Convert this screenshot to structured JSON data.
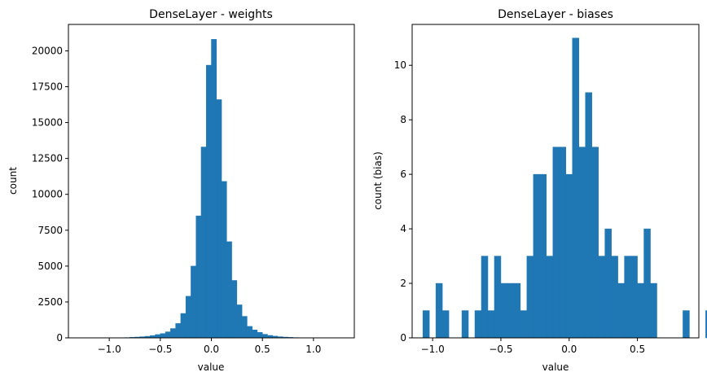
{
  "chart_data": [
    {
      "type": "histogram",
      "title": "DenseLayer - weights",
      "xlabel": "value",
      "ylabel": "count",
      "xlim": [
        -1.4,
        1.4
      ],
      "ylim": [
        0,
        21840
      ],
      "xticks": [
        -1.0,
        -0.5,
        0.0,
        0.5,
        1.0
      ],
      "xtick_labels": [
        "−1.0",
        "−0.5",
        "0.0",
        "0.5",
        "1.0"
      ],
      "yticks": [
        0,
        2500,
        5000,
        7500,
        10000,
        12500,
        15000,
        17500,
        20000
      ],
      "ytick_labels": [
        "0",
        "2500",
        "5000",
        "7500",
        "10000",
        "12500",
        "15000",
        "17500",
        "20000"
      ],
      "bin_width": 0.05,
      "bins": [
        [
          -1.0,
          5
        ],
        [
          -0.95,
          8
        ],
        [
          -0.9,
          12
        ],
        [
          -0.85,
          20
        ],
        [
          -0.8,
          35
        ],
        [
          -0.75,
          55
        ],
        [
          -0.7,
          80
        ],
        [
          -0.65,
          110
        ],
        [
          -0.6,
          160
        ],
        [
          -0.55,
          230
        ],
        [
          -0.5,
          300
        ],
        [
          -0.45,
          420
        ],
        [
          -0.4,
          650
        ],
        [
          -0.35,
          1000
        ],
        [
          -0.3,
          1700
        ],
        [
          -0.25,
          2900
        ],
        [
          -0.2,
          5000
        ],
        [
          -0.15,
          8500
        ],
        [
          -0.1,
          13300
        ],
        [
          -0.05,
          19000
        ],
        [
          0.0,
          20800
        ],
        [
          0.05,
          16600
        ],
        [
          0.1,
          10900
        ],
        [
          0.15,
          6700
        ],
        [
          0.2,
          4000
        ],
        [
          0.25,
          2300
        ],
        [
          0.3,
          1500
        ],
        [
          0.35,
          800
        ],
        [
          0.4,
          550
        ],
        [
          0.45,
          380
        ],
        [
          0.5,
          250
        ],
        [
          0.55,
          170
        ],
        [
          0.6,
          120
        ],
        [
          0.65,
          80
        ],
        [
          0.7,
          55
        ],
        [
          0.75,
          35
        ],
        [
          0.8,
          20
        ],
        [
          0.85,
          12
        ],
        [
          0.9,
          8
        ],
        [
          0.95,
          5
        ]
      ]
    },
    {
      "type": "histogram",
      "title": "DenseLayer - biases",
      "xlabel": "value",
      "ylabel": "count (bias)",
      "xlim": [
        -1.15,
        0.95
      ],
      "ylim": [
        0,
        11.5
      ],
      "xticks": [
        -1.0,
        -0.5,
        0.0,
        0.5
      ],
      "xtick_labels": [
        "−1.0",
        "−0.5",
        "0.0",
        "0.5"
      ],
      "yticks": [
        0,
        2,
        4,
        6,
        8,
        10
      ],
      "ytick_labels": [
        "0",
        "2",
        "4",
        "6",
        "8",
        "10"
      ],
      "bin_width": 0.0476,
      "bins": [
        [
          -1.0714,
          1
        ],
        [
          -0.9762,
          2
        ],
        [
          -0.9286,
          1
        ],
        [
          -0.7857,
          1
        ],
        [
          -0.6905,
          1
        ],
        [
          -0.6429,
          3
        ],
        [
          -0.5952,
          1
        ],
        [
          -0.5476,
          3
        ],
        [
          -0.5,
          2
        ],
        [
          -0.4524,
          2
        ],
        [
          -0.4048,
          2
        ],
        [
          -0.3571,
          1
        ],
        [
          -0.3095,
          3
        ],
        [
          -0.2619,
          6
        ],
        [
          -0.2143,
          6
        ],
        [
          -0.1667,
          3
        ],
        [
          -0.119,
          7
        ],
        [
          -0.0714,
          7
        ],
        [
          -0.0238,
          6
        ],
        [
          0.0238,
          11
        ],
        [
          0.0714,
          7
        ],
        [
          0.119,
          9
        ],
        [
          0.1667,
          7
        ],
        [
          0.2143,
          3
        ],
        [
          0.2619,
          4
        ],
        [
          0.3095,
          3
        ],
        [
          0.3571,
          2
        ],
        [
          0.4048,
          3
        ],
        [
          0.4524,
          3
        ],
        [
          0.5,
          2
        ],
        [
          0.5476,
          4
        ],
        [
          0.5952,
          2
        ],
        [
          0.8333,
          1
        ],
        [
          1.0,
          1
        ]
      ]
    }
  ]
}
